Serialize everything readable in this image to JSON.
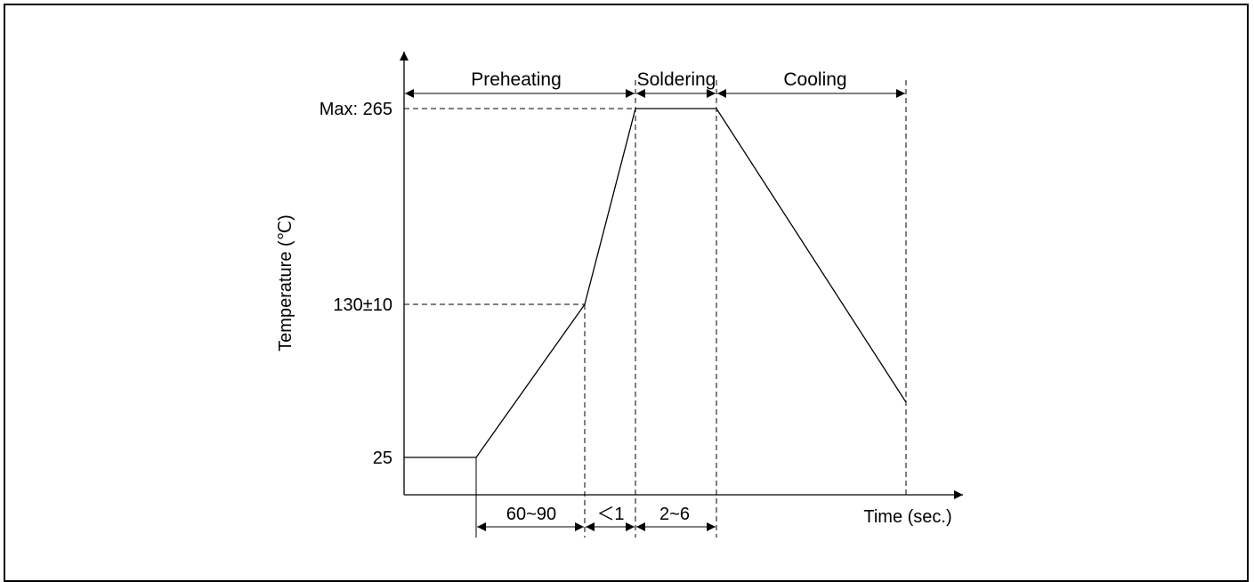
{
  "diagram": {
    "y_axis_label": "Temperature (℃)",
    "x_axis_label": "Time (sec.)",
    "y_ticks": {
      "max": "Max: 265",
      "mid": "130±10",
      "low": "25"
    },
    "phases": {
      "preheating": "Preheating",
      "soldering": "Soldering",
      "cooling": "Cooling"
    },
    "durations": {
      "ramp": "60~90",
      "rise": "＜1",
      "hold": "2~6"
    }
  }
}
